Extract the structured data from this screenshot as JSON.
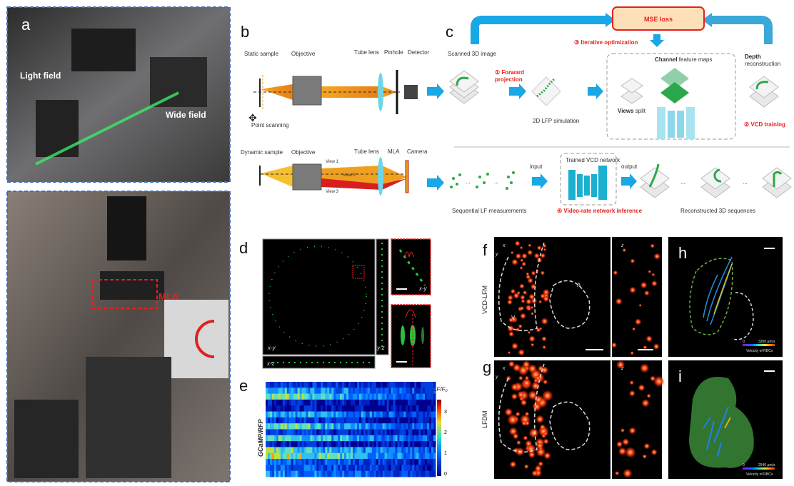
{
  "panels": {
    "a": {
      "label": "a",
      "light_field": "Light field",
      "wide_field": "Wide field",
      "mla": "MLA"
    },
    "b": {
      "label": "b",
      "top": [
        "Static sample",
        "Objective",
        "Tube lens",
        "Pinhole",
        "Detector"
      ],
      "point_scanning": "Point scanning",
      "bottom": [
        "Dynamic sample",
        "Objective",
        "Tube lens",
        "MLA",
        "Camera"
      ],
      "views": [
        "View 1",
        "View 2",
        "View 3"
      ]
    },
    "c": {
      "label": "c",
      "mse_loss": "MSE loss",
      "iterative": "③ Iterative optimization",
      "scanned": "Scanned 3D image",
      "forward": "① Forward",
      "projection": "projection",
      "lfp_sim": "2D LFP simulation",
      "channel_bold": "Channel",
      "channel_rest": " feature maps",
      "views_bold": "Views",
      "views_rest": " split",
      "depth_bold": "Depth",
      "depth_rest": "reconstruction",
      "vcd_training": "② VCD training",
      "sequential": "Sequential LF measurements",
      "input": "input",
      "trained": "Trained VCD network",
      "output": "output",
      "inference": "④ Video-rate network inference",
      "reconstructed": "Reconstructed 3D sequences",
      "ellipsis": "..."
    },
    "d": {
      "label": "d",
      "xy": "x-y",
      "yz": "y-z",
      "xz": "x-z",
      "inset_xy": "x-y"
    },
    "e": {
      "label": "e",
      "ylabel": "GCaMP/RFP",
      "colorbar_title": "ΔF/F₀",
      "ticks": [
        "3",
        "2",
        "1",
        "0"
      ]
    },
    "f": {
      "label": "f",
      "side": "VCD-LFM",
      "axis_x": "x",
      "axis_y": "y",
      "axis_z": "z",
      "region_a": "A",
      "region_v": "V"
    },
    "g": {
      "label": "g",
      "side": "LFDM",
      "axis_x": "x",
      "axis_y": "y",
      "axis_z": "z"
    },
    "h": {
      "label": "h",
      "cbar_min": "0",
      "cbar_max": "3200 μm/s",
      "cbar_title": "Velocity of RBCs"
    },
    "i": {
      "label": "i",
      "cbar_min": "0",
      "cbar_max": "2540 μm/s",
      "cbar_title": "Velocity of RBCs"
    }
  },
  "colors": {
    "arrow": "#1aa7e6",
    "red": "#e8201e",
    "green": "#2aa84a",
    "border_blue": "#3b6fc4"
  }
}
